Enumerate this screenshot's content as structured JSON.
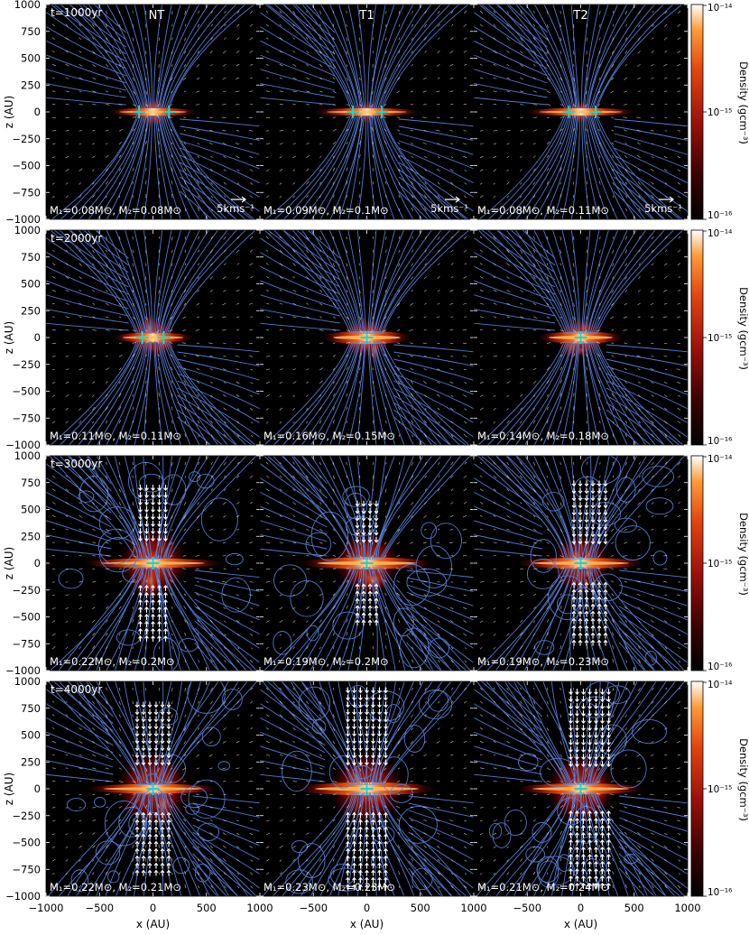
{
  "chart_data": {
    "type": "heatmap",
    "description_free": true,
    "columns": [
      "NT",
      "T1",
      "T2"
    ],
    "rows": [
      {
        "time_label": "t=1000yr",
        "masses": [
          {
            "m1": "M₁=0.08M⊙",
            "m2": "M₂=0.08M⊙"
          },
          {
            "m1": "M₁=0.09M⊙",
            "m2": "M₂=0.1M⊙"
          },
          {
            "m1": "M₁=0.08M⊙",
            "m2": "M₂=0.11M⊙"
          }
        ],
        "sinks": [
          [
            -130,
            150
          ],
          [
            -130,
            140
          ],
          [
            -110,
            140
          ]
        ],
        "disk_halfwidth": [
          420,
          500,
          520
        ],
        "disk_thick": [
          35,
          35,
          35
        ],
        "core": [
          160,
          120,
          120
        ]
      },
      {
        "time_label": "t=2000yr",
        "masses": [
          {
            "m1": "M₁=0.11M⊙",
            "m2": "M₂=0.11M⊙"
          },
          {
            "m1": "M₁=0.16M⊙",
            "m2": "M₂=0.15M⊙"
          },
          {
            "m1": "M₁=0.14M⊙",
            "m2": "M₂=0.18M⊙"
          }
        ],
        "sinks": [
          [
            -100,
            100
          ],
          [
            0,
            0
          ],
          [
            0,
            0
          ]
        ],
        "disk_halfwidth": [
          380,
          420,
          400
        ],
        "disk_thick": [
          45,
          60,
          55
        ],
        "core": [
          220,
          220,
          220
        ]
      },
      {
        "time_label": "t=3000yr",
        "masses": [
          {
            "m1": "M₁=0.22M⊙",
            "m2": "M₂=0.2M⊙"
          },
          {
            "m1": "M₁=0.19M⊙",
            "m2": "M₂=0.2M⊙"
          },
          {
            "m1": "M₁=0.19M⊙",
            "m2": "M₂=0.23M⊙"
          }
        ],
        "sinks": [
          [
            0,
            0
          ],
          [
            0,
            0
          ],
          [
            0,
            0
          ]
        ],
        "disk_halfwidth": [
          650,
          620,
          600
        ],
        "disk_thick": [
          45,
          55,
          50
        ],
        "core": [
          300,
          280,
          260
        ]
      },
      {
        "time_label": "t=4000yr",
        "masses": [
          {
            "m1": "M₁=0.22M⊙",
            "m2": "M₂=0.21M⊙"
          },
          {
            "m1": "M₁=0.23M⊙",
            "m2": "M₂=0.23M⊙"
          },
          {
            "m1": "M₁=0.21M⊙",
            "m2": "M₂=0.24M⊙"
          }
        ],
        "sinks": [
          [
            0,
            0
          ],
          [
            0,
            0
          ],
          [
            0,
            0
          ]
        ],
        "disk_halfwidth": [
          620,
          650,
          600
        ],
        "disk_thick": [
          45,
          60,
          50
        ],
        "core": [
          320,
          320,
          300
        ]
      }
    ],
    "outflow_strength": [
      [
        0,
        0,
        0
      ],
      [
        0,
        0,
        0
      ],
      [
        0.55,
        0.25,
        0.7
      ],
      [
        0.75,
        1.0,
        1.0
      ]
    ],
    "x_range": [
      -1000,
      1000
    ],
    "z_range": [
      -1000,
      1000
    ],
    "xticks": [
      -1000,
      -500,
      0,
      500,
      1000
    ],
    "xtick_labels": [
      "−1000",
      "−500",
      "0",
      "500",
      "1000"
    ],
    "yticks": [
      1000,
      750,
      500,
      250,
      0,
      -250,
      -500,
      -750,
      -1000
    ],
    "ytick_labels": [
      "1000",
      "750",
      "500",
      "250",
      "0",
      "−250",
      "−500",
      "−750",
      "−1000"
    ],
    "xlabel": "x (AU)",
    "ylabel": "z (AU)",
    "colorbar_label": "Density (gcm⁻³)",
    "colorbar_ticks": [
      "10⁻¹⁴",
      "10⁻¹⁵",
      "10⁻¹⁶"
    ],
    "colorbar_range": [
      1e-16,
      1e-14
    ],
    "colorbar_scale": "log",
    "velocity_key": "5kms⁻¹",
    "colors": {
      "background": "#000000",
      "field_lines": "#5a7fd6",
      "sinks": "#1fd6c8",
      "arrows": "#ffffff",
      "disk_core": "#ff8a1a"
    }
  }
}
